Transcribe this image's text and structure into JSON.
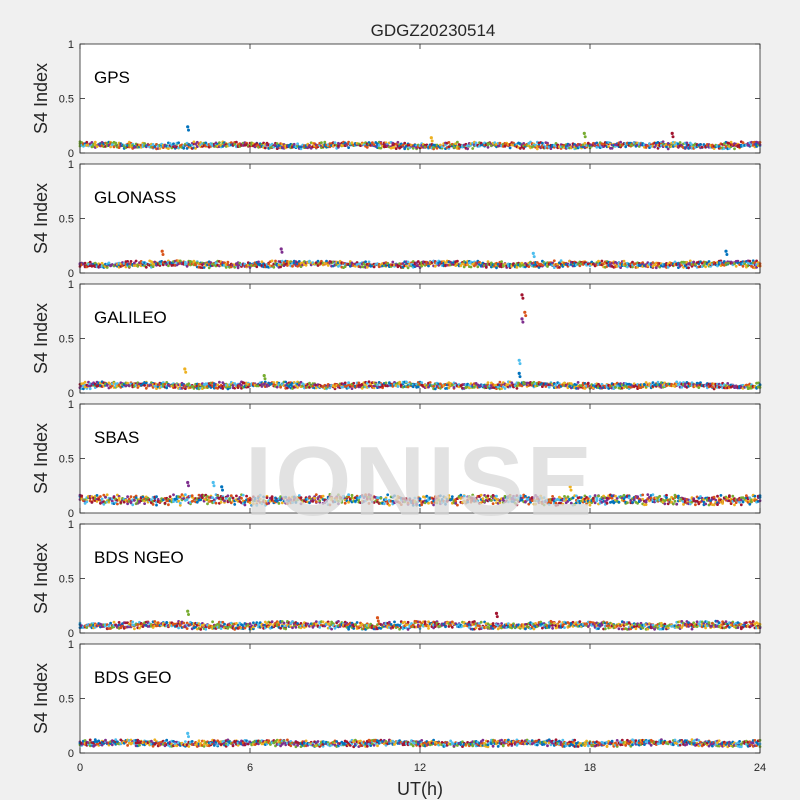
{
  "chart_data": {
    "type": "scatter",
    "title": "GDGZ20230514",
    "xlabel": "UT(h)",
    "ylabel": "S4 Index",
    "xlim": [
      0,
      24
    ],
    "ylim": [
      0,
      1
    ],
    "xticks": [
      "0",
      "6",
      "12",
      "18",
      "24"
    ],
    "yticks": [
      "0",
      "0.5",
      "1"
    ],
    "grid": false,
    "watermark": "IONISE",
    "series_colors": [
      "#0072BD",
      "#D95319",
      "#EDB120",
      "#7E2F8E",
      "#77AC30",
      "#4DBEEE",
      "#A2142F"
    ],
    "panels": [
      {
        "name": "GPS",
        "baseline": 0.07,
        "spread": 0.03,
        "spikes": [
          {
            "x": 3.8,
            "y": 0.24
          },
          {
            "x": 12.4,
            "y": 0.14
          },
          {
            "x": 17.8,
            "y": 0.18
          },
          {
            "x": 20.9,
            "y": 0.18
          }
        ]
      },
      {
        "name": "GLONASS",
        "baseline": 0.08,
        "spread": 0.03,
        "spikes": [
          {
            "x": 2.9,
            "y": 0.2
          },
          {
            "x": 7.1,
            "y": 0.22
          },
          {
            "x": 16.0,
            "y": 0.18
          },
          {
            "x": 22.8,
            "y": 0.2
          }
        ]
      },
      {
        "name": "GALILEO",
        "baseline": 0.07,
        "spread": 0.03,
        "spikes": [
          {
            "x": 3.7,
            "y": 0.22
          },
          {
            "x": 6.5,
            "y": 0.16
          },
          {
            "x": 15.6,
            "y": 0.9
          },
          {
            "x": 15.7,
            "y": 0.74
          },
          {
            "x": 15.6,
            "y": 0.68
          },
          {
            "x": 15.5,
            "y": 0.3
          },
          {
            "x": 15.5,
            "y": 0.18
          }
        ]
      },
      {
        "name": "SBAS",
        "baseline": 0.12,
        "spread": 0.06,
        "spikes": [
          {
            "x": 3.8,
            "y": 0.28
          },
          {
            "x": 4.7,
            "y": 0.28
          },
          {
            "x": 5.0,
            "y": 0.24
          },
          {
            "x": 17.3,
            "y": 0.24
          }
        ]
      },
      {
        "name": "BDS NGEO",
        "baseline": 0.07,
        "spread": 0.04,
        "spikes": [
          {
            "x": 3.8,
            "y": 0.2
          },
          {
            "x": 14.7,
            "y": 0.18
          },
          {
            "x": 10.5,
            "y": 0.14
          }
        ]
      },
      {
        "name": "BDS GEO",
        "baseline": 0.09,
        "spread": 0.03,
        "spikes": [
          {
            "x": 3.8,
            "y": 0.18
          }
        ]
      }
    ]
  }
}
